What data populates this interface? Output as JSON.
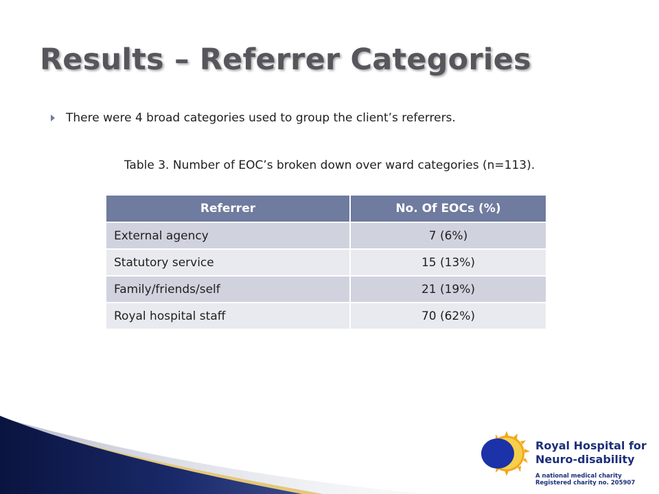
{
  "slide": {
    "title": "Results – Referrer Categories",
    "bullet": "There were 4 broad categories used to group the client’s referrers.",
    "caption": "Table 3. Number of EOC’s broken down over ward categories (n=113)."
  },
  "table": {
    "headers": [
      "Referrer",
      "No. Of EOCs (%)"
    ],
    "rows": [
      {
        "referrer": "External agency",
        "count": "7 (6%)"
      },
      {
        "referrer": "Statutory service",
        "count": "15 (13%)"
      },
      {
        "referrer": "Family/friends/self",
        "count": "21 (19%)"
      },
      {
        "referrer": "Royal hospital staff",
        "count": "70 (62%)"
      }
    ]
  },
  "logo": {
    "name_line1": "Royal Hospital for",
    "name_line2": "Neuro-disability",
    "tagline_line1": "A national medical charity",
    "tagline_line2": "Registered charity no. 205907"
  },
  "colors": {
    "title": "#56565c",
    "table_header": "#6f7b9f",
    "row_dark": "#d0d3de",
    "row_light": "#e9eaef",
    "swoosh_navy": "#0d1a4a",
    "logo_blue": "#1c2f7a",
    "logo_sun": "#f2a81d"
  }
}
